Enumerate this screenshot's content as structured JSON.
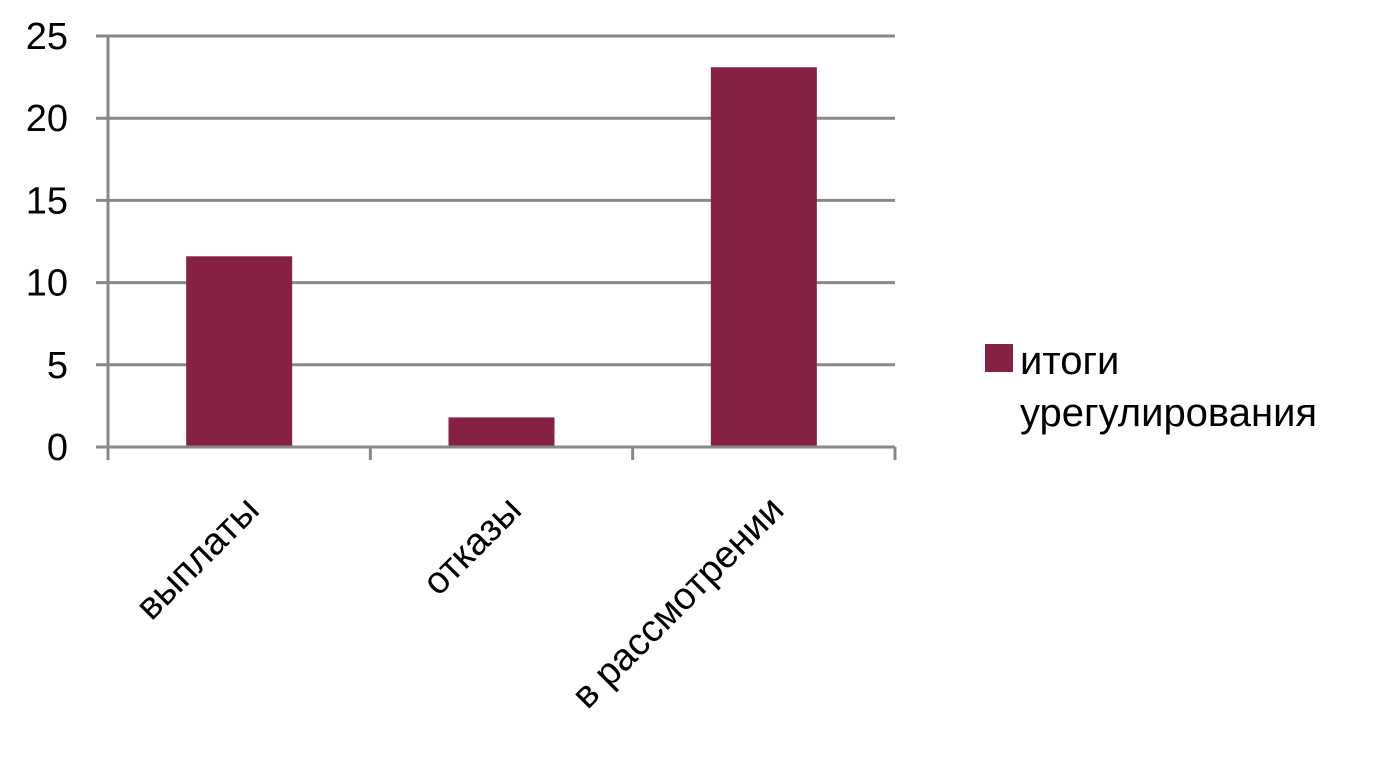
{
  "chart_data": {
    "type": "bar",
    "categories": [
      "выплаты",
      "отказы",
      "в рассмотрении"
    ],
    "series": [
      {
        "name": "итоги урегулирования",
        "values": [
          11.6,
          1.8,
          23.1
        ]
      }
    ],
    "ylim": [
      0,
      25
    ],
    "yticks": [
      0,
      5,
      10,
      15,
      20,
      25
    ],
    "grid": true,
    "legend_position": "right",
    "colors": {
      "bar": "#852244",
      "grid": "#888888",
      "axis": "#888888",
      "text": "#000000"
    }
  },
  "legend": {
    "line1": "итоги",
    "line2": "урегулирования"
  }
}
